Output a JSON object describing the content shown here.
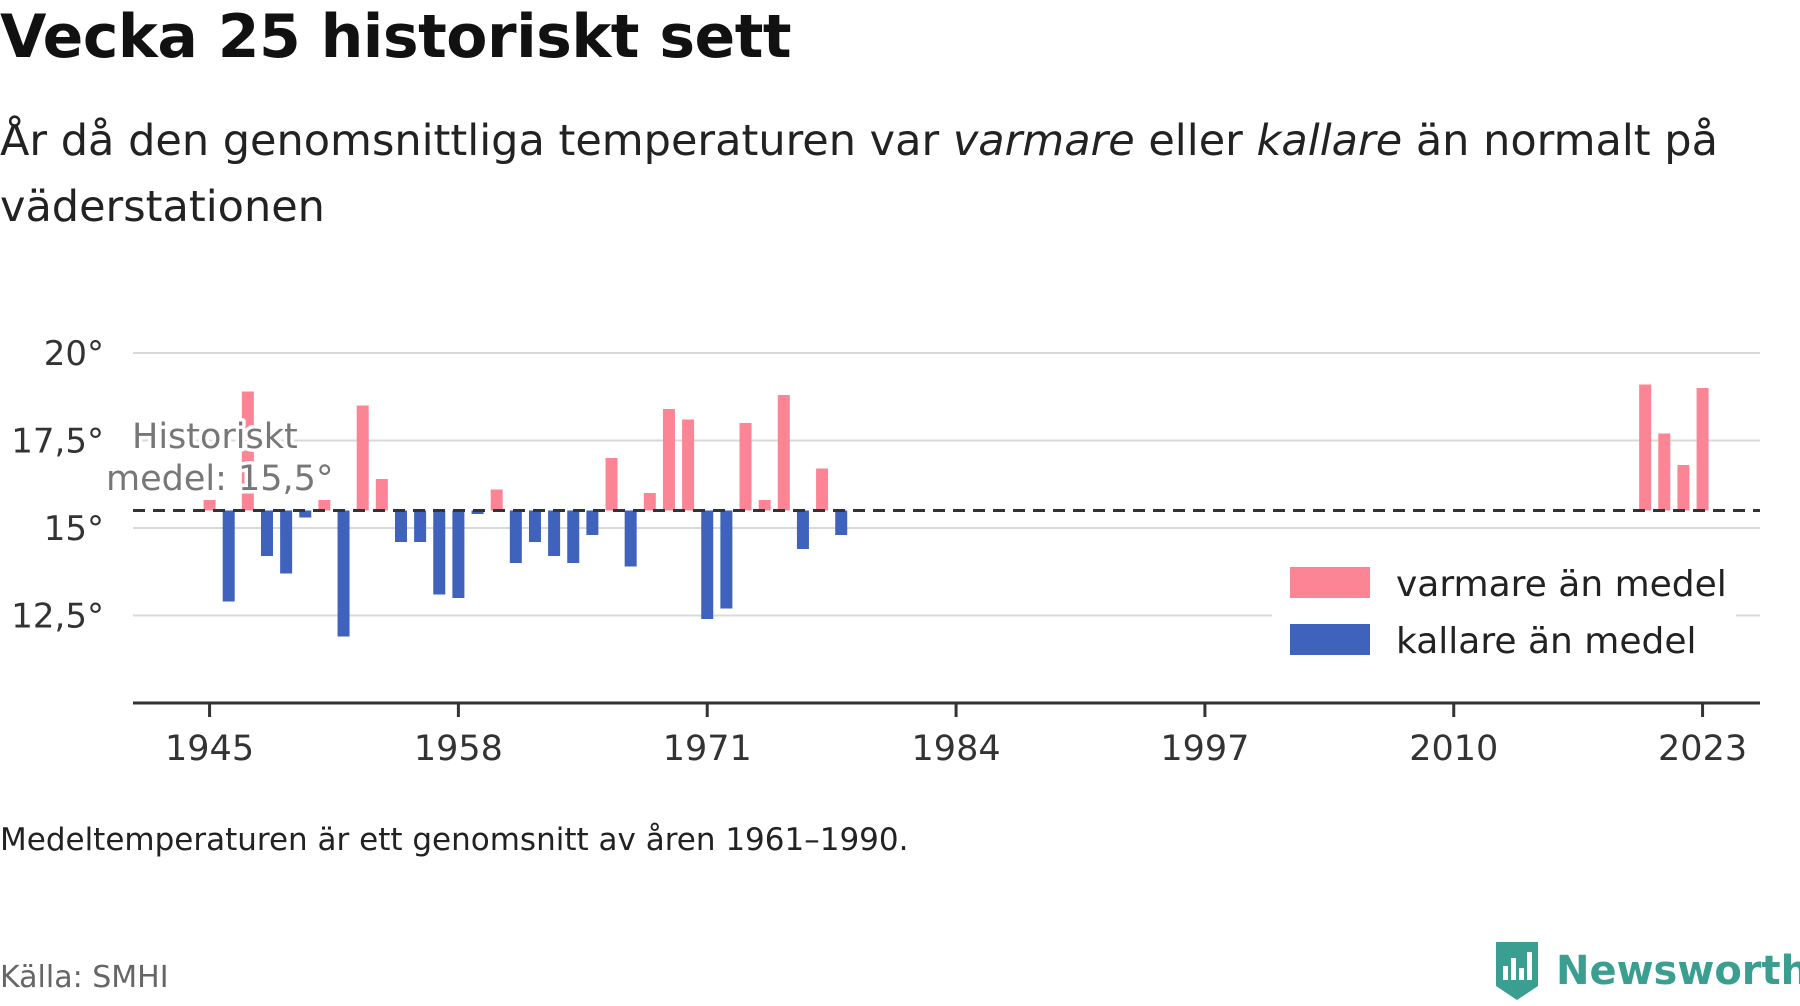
{
  "header": {
    "title": "Vecka 25 historiskt sett",
    "subtitle_part1": "År då den genomsnittliga temperaturen var ",
    "subtitle_em1": "varmare",
    "subtitle_part2": " eller ",
    "subtitle_em2": "kallare",
    "subtitle_part3": " än normalt på väderstationen"
  },
  "footer": {
    "note": "Medeltemperaturen är ett genomsnitt av åren 1961–1990.",
    "source": "Källa: SMHI",
    "brand": "Newsworthy"
  },
  "colors": {
    "warm": "#fc8595",
    "cold": "#3f62bd",
    "grid": "#d9d9d9",
    "axis": "#333333",
    "brand": "#3a9e91"
  },
  "chart_data": {
    "type": "bar",
    "baseline": 15.5,
    "baseline_label_line1": "Historiskt",
    "baseline_label_line2": "medel: 15,5°",
    "xlim": [
      1941,
      2026
    ],
    "ylim": [
      10,
      20
    ],
    "yticks": [
      20,
      17.5,
      15,
      12.5
    ],
    "ytick_labels": [
      "20°",
      "17,5°",
      "15°",
      "12,5°"
    ],
    "xticks": [
      1945,
      1958,
      1971,
      1984,
      1997,
      2010,
      2023
    ],
    "xtick_labels": [
      "1945",
      "1958",
      "1971",
      "1984",
      "1997",
      "2010",
      "2023"
    ],
    "legend": {
      "position": "bottom-right",
      "warm_label": "varmare än medel",
      "cold_label": "kallare än medel"
    },
    "series": [
      {
        "name": "varmare än medel",
        "points": [
          [
            1945,
            15.8
          ],
          [
            1947,
            18.9
          ],
          [
            1951,
            15.8
          ],
          [
            1953,
            18.5
          ],
          [
            1954,
            16.4
          ],
          [
            1960,
            16.1
          ],
          [
            1966,
            17.0
          ],
          [
            1968,
            16.0
          ],
          [
            1969,
            18.4
          ],
          [
            1970,
            18.1
          ],
          [
            1973,
            18.0
          ],
          [
            1974,
            15.8
          ],
          [
            1975,
            18.8
          ],
          [
            1977,
            16.7
          ],
          [
            2020,
            19.1
          ],
          [
            2021,
            17.7
          ],
          [
            2022,
            16.8
          ],
          [
            2023,
            19.0
          ]
        ]
      },
      {
        "name": "kallare än medel",
        "points": [
          [
            1946,
            12.9
          ],
          [
            1948,
            14.2
          ],
          [
            1949,
            13.7
          ],
          [
            1950,
            15.3
          ],
          [
            1952,
            11.9
          ],
          [
            1955,
            14.6
          ],
          [
            1956,
            14.6
          ],
          [
            1957,
            13.1
          ],
          [
            1958,
            13.0
          ],
          [
            1959,
            15.4
          ],
          [
            1961,
            14.0
          ],
          [
            1962,
            14.6
          ],
          [
            1963,
            14.2
          ],
          [
            1964,
            14.0
          ],
          [
            1965,
            14.8
          ],
          [
            1967,
            13.9
          ],
          [
            1971,
            12.4
          ],
          [
            1972,
            12.7
          ],
          [
            1976,
            14.4
          ],
          [
            1978,
            14.8
          ]
        ]
      }
    ]
  }
}
